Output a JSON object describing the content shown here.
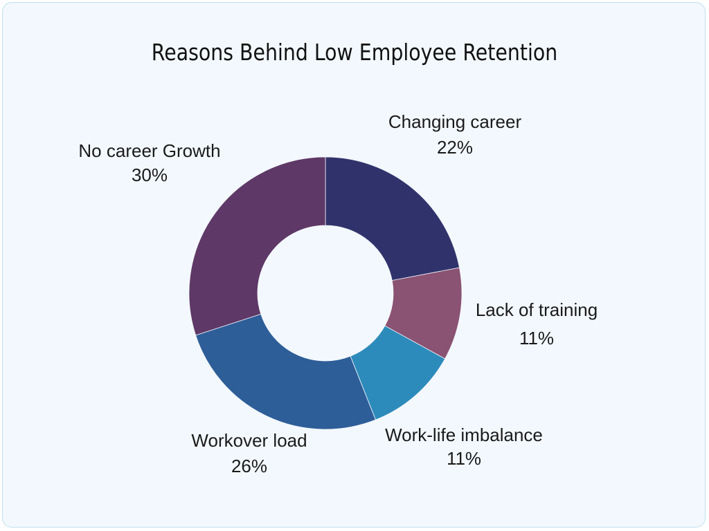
{
  "chart_data": {
    "type": "pie",
    "title": "Reasons Behind Low Employee Retention",
    "donut": true,
    "slices": [
      {
        "label": "Changing career",
        "value": 22,
        "value_label": "22%",
        "color": "#30336b"
      },
      {
        "label": "Lack of training",
        "value": 11,
        "value_label": "11%",
        "color": "#8a5273"
      },
      {
        "label": "Work-life imbalance",
        "value": 11,
        "value_label": "11%",
        "color": "#2d8bbb"
      },
      {
        "label": "Workover load",
        "value": 26,
        "value_label": "26%",
        "color": "#2e5e98"
      },
      {
        "label": "No career Growth",
        "value": 30,
        "value_label": "30%",
        "color": "#5e3866"
      }
    ]
  }
}
